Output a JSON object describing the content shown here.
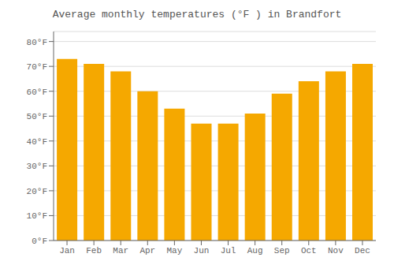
{
  "chart_data": {
    "type": "bar",
    "title": "Average monthly temperatures (°F ) in Brandfort",
    "categories": [
      "Jan",
      "Feb",
      "Mar",
      "Apr",
      "May",
      "Jun",
      "Jul",
      "Aug",
      "Sep",
      "Oct",
      "Nov",
      "Dec"
    ],
    "values": [
      73,
      71,
      68,
      60,
      53,
      47,
      47,
      51,
      59,
      64,
      68,
      71
    ],
    "color": "#F5A800",
    "ylim": [
      0,
      84
    ],
    "yticks": [
      {
        "value": 0,
        "label": "0°F"
      },
      {
        "value": 10,
        "label": "10°F"
      },
      {
        "value": 20,
        "label": "20°F"
      },
      {
        "value": 30,
        "label": "30°F"
      },
      {
        "value": 40,
        "label": "40°F"
      },
      {
        "value": 50,
        "label": "50°F"
      },
      {
        "value": 60,
        "label": "60°F"
      },
      {
        "value": 70,
        "label": "70°F"
      },
      {
        "value": 80,
        "label": "80°F"
      }
    ],
    "grid": true
  }
}
